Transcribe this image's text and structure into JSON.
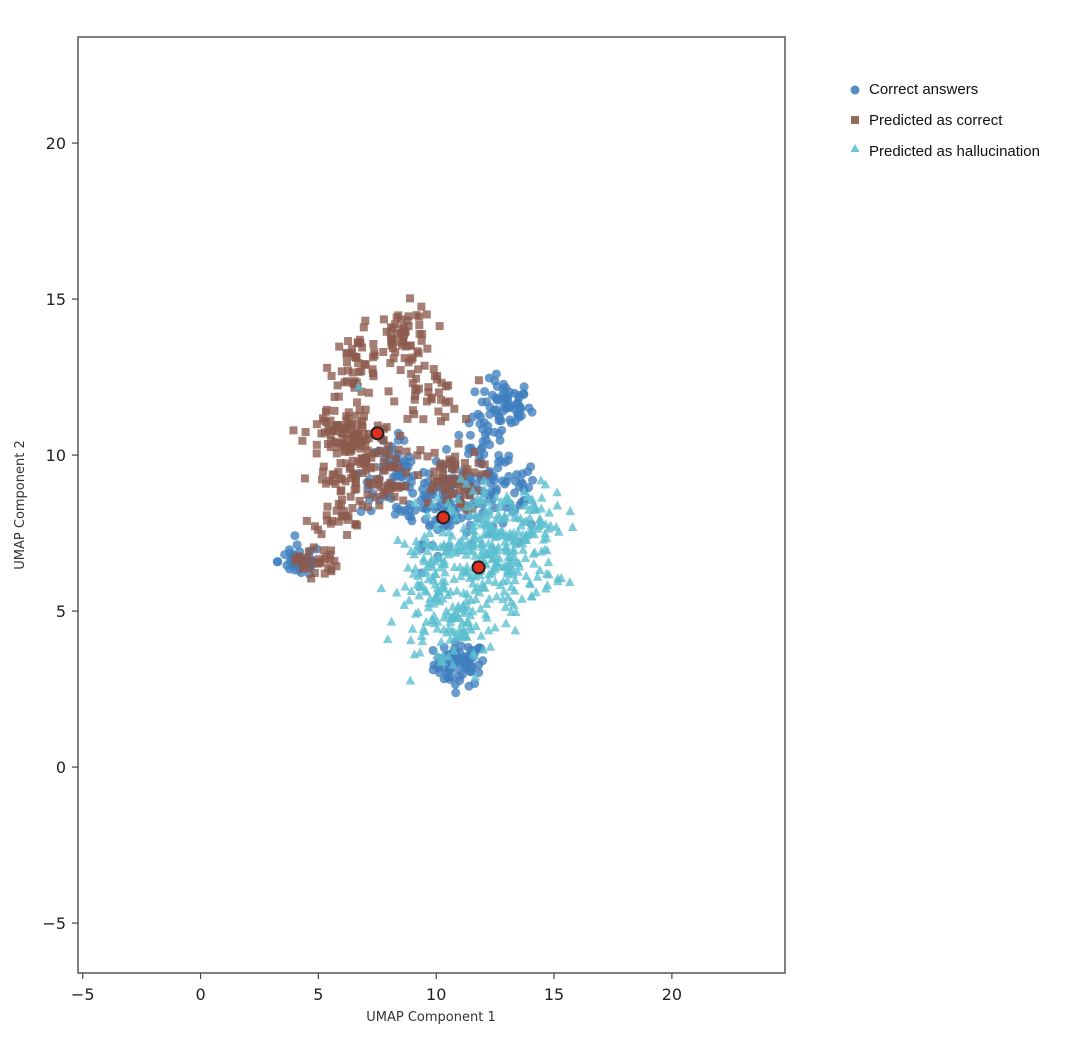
{
  "chart_data": {
    "type": "scatter",
    "title": "",
    "xlabel": "UMAP Component 1",
    "ylabel": "UMAP Component 2",
    "xlim": [
      -5.2,
      24.8
    ],
    "ylim": [
      -6.6,
      23.4
    ],
    "xticks": [
      -5,
      0,
      5,
      10,
      15,
      20
    ],
    "yticks": [
      -5,
      0,
      5,
      10,
      15,
      20
    ],
    "tick_labels_x": [
      "−5",
      "0",
      "5",
      "10",
      "15",
      "20"
    ],
    "tick_labels_y": [
      "−5",
      "0",
      "5",
      "10",
      "15",
      "20"
    ],
    "grid": false,
    "legend_position": "outside-top-right",
    "colors": {
      "correct": "#3f7fbf",
      "predicted_correct": "#8c5a4d",
      "hallucination": "#5bbfd0",
      "highlight_fill": "#e0301e",
      "highlight_edge": "#222222",
      "axes": "#555555"
    },
    "series": [
      {
        "name": "Correct answers",
        "marker": "circle",
        "color": "#3f7fbf",
        "clusters": [
          {
            "cx": 11.0,
            "cy": 3.3,
            "sx": 0.55,
            "sy": 0.35,
            "n": 70
          },
          {
            "cx": 12.9,
            "cy": 11.6,
            "sx": 0.55,
            "sy": 0.4,
            "n": 60
          },
          {
            "cx": 12.0,
            "cy": 10.3,
            "sx": 0.6,
            "sy": 0.9,
            "n": 40
          },
          {
            "cx": 10.5,
            "cy": 8.6,
            "sx": 1.1,
            "sy": 0.7,
            "n": 120
          },
          {
            "cx": 8.2,
            "cy": 9.3,
            "sx": 0.7,
            "sy": 0.6,
            "n": 55
          },
          {
            "cx": 4.2,
            "cy": 6.6,
            "sx": 0.45,
            "sy": 0.25,
            "n": 45
          },
          {
            "cx": 13.3,
            "cy": 8.7,
            "sx": 0.5,
            "sy": 0.6,
            "n": 30
          }
        ],
        "points": []
      },
      {
        "name": "Predicted as correct",
        "marker": "square",
        "color": "#8c5a4d",
        "clusters": [
          {
            "cx": 8.7,
            "cy": 13.8,
            "sx": 0.6,
            "sy": 0.5,
            "n": 55
          },
          {
            "cx": 6.6,
            "cy": 12.9,
            "sx": 0.55,
            "sy": 0.5,
            "n": 45
          },
          {
            "cx": 9.6,
            "cy": 12.0,
            "sx": 0.7,
            "sy": 0.5,
            "n": 40
          },
          {
            "cx": 6.6,
            "cy": 10.3,
            "sx": 0.8,
            "sy": 0.7,
            "n": 110
          },
          {
            "cx": 5.4,
            "cy": 10.7,
            "sx": 0.5,
            "sy": 0.4,
            "n": 25
          },
          {
            "cx": 6.0,
            "cy": 8.6,
            "sx": 0.6,
            "sy": 0.6,
            "n": 45
          },
          {
            "cx": 10.5,
            "cy": 9.2,
            "sx": 0.7,
            "sy": 0.5,
            "n": 60
          },
          {
            "cx": 4.9,
            "cy": 6.6,
            "sx": 0.45,
            "sy": 0.25,
            "n": 30
          },
          {
            "cx": 7.9,
            "cy": 9.1,
            "sx": 0.6,
            "sy": 0.5,
            "n": 35
          }
        ],
        "points": []
      },
      {
        "name": "Predicted as hallucination",
        "marker": "triangle",
        "color": "#5bbfd0",
        "clusters": [
          {
            "cx": 12.8,
            "cy": 7.0,
            "sx": 1.1,
            "sy": 1.0,
            "n": 230
          },
          {
            "cx": 10.3,
            "cy": 6.0,
            "sx": 1.1,
            "sy": 1.1,
            "n": 160
          },
          {
            "cx": 11.0,
            "cy": 4.4,
            "sx": 0.6,
            "sy": 0.6,
            "n": 50
          },
          {
            "cx": 14.3,
            "cy": 7.9,
            "sx": 0.5,
            "sy": 0.5,
            "n": 30
          }
        ],
        "points": [
          {
            "x": 6.7,
            "y": 12.2
          }
        ]
      }
    ],
    "highlighted_points": [
      {
        "x": 7.5,
        "y": 10.7
      },
      {
        "x": 10.3,
        "y": 8.0
      },
      {
        "x": 11.8,
        "y": 6.4
      }
    ],
    "legend": [
      {
        "label": "Correct answers",
        "marker": "circle",
        "color": "#3f7fbf"
      },
      {
        "label": "Predicted as correct",
        "marker": "square",
        "color": "#8c5a4d"
      },
      {
        "label": "Predicted as hallucination",
        "marker": "triangle",
        "color": "#5bbfd0"
      }
    ]
  }
}
